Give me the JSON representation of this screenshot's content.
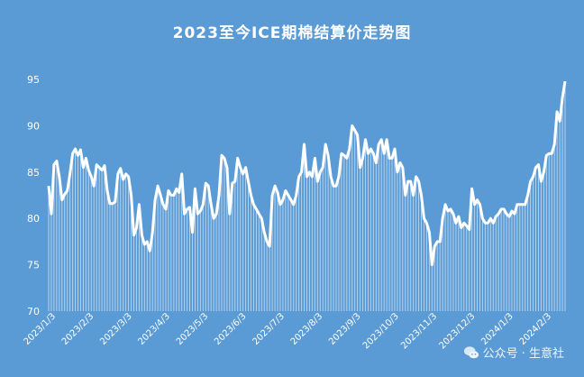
{
  "chart_data": {
    "type": "line",
    "title": "2023至今ICE期棉结算价走势图",
    "xlabel": "",
    "ylabel": "",
    "ylim": [
      70,
      95
    ],
    "yticks": [
      70,
      75,
      80,
      85,
      90,
      95
    ],
    "grid": false,
    "legend": "none",
    "fill_below": true,
    "xtick_labels": [
      "2023/1/3",
      "2023/2/3",
      "2023/3/3",
      "2023/4/3",
      "2023/5/3",
      "2023/6/3",
      "2023/7/3",
      "2023/8/3",
      "2023/9/3",
      "2023/10/3",
      "2023/11/3",
      "2023/12/3",
      "2024/1/3",
      "2024/2/3"
    ],
    "series": [
      {
        "values": [
          83.5,
          80.5,
          85.8,
          86.2,
          84.5,
          82.0,
          82.6,
          83.0,
          84.8,
          87.0,
          87.5,
          86.8,
          87.4,
          85.5,
          86.5,
          85.2,
          84.5,
          83.5,
          85.8,
          85.5,
          85.2,
          85.7,
          83.0,
          81.6,
          81.6,
          81.8,
          84.8,
          85.4,
          84.2,
          84.8,
          84.5,
          82.5,
          78.2,
          79.0,
          81.5,
          78.2,
          77.2,
          77.5,
          76.5,
          78.5,
          82.0,
          83.5,
          82.5,
          81.5,
          81.0,
          83.0,
          82.5,
          82.5,
          83.2,
          82.8,
          84.8,
          80.5,
          81.0,
          81.2,
          78.5,
          83.2,
          80.5,
          80.8,
          81.5,
          83.8,
          83.5,
          81.5,
          80.0,
          80.5,
          82.5,
          86.8,
          86.5,
          85.5,
          80.5,
          83.8,
          84.0,
          86.5,
          85.5,
          84.8,
          85.5,
          84.0,
          82.5,
          81.5,
          81.0,
          80.5,
          80.0,
          78.5,
          77.5,
          77.0,
          82.5,
          83.5,
          82.8,
          81.5,
          82.0,
          83.0,
          82.5,
          82.0,
          81.5,
          82.5,
          84.5,
          85.0,
          88.0,
          84.5,
          85.0,
          84.5,
          86.5,
          84.0,
          85.0,
          85.5,
          88.0,
          86.8,
          84.5,
          83.5,
          83.5,
          84.5,
          87.0,
          86.8,
          86.5,
          87.5,
          90.0,
          89.5,
          89.0,
          85.5,
          86.5,
          88.5,
          87.0,
          87.5,
          87.0,
          86.0,
          88.0,
          88.5,
          87.0,
          88.5,
          86.5,
          86.5,
          87.5,
          85.0,
          86.0,
          85.5,
          82.5,
          84.0,
          84.0,
          82.5,
          84.5,
          84.0,
          82.5,
          80.0,
          79.5,
          78.5,
          75.0,
          77.0,
          77.5,
          77.5,
          80.0,
          81.5,
          80.8,
          81.0,
          80.5,
          79.5,
          80.2,
          79.0,
          79.5,
          79.2,
          78.8,
          83.2,
          81.5,
          82.0,
          81.5,
          80.0,
          79.5,
          79.5,
          80.0,
          79.5,
          80.2,
          80.5,
          81.0,
          81.0,
          80.5,
          80.2,
          80.8,
          80.5,
          81.5,
          81.5,
          81.5,
          81.5,
          82.5,
          84.0,
          84.5,
          85.5,
          85.8,
          84.0,
          85.0,
          86.8,
          87.0,
          87.0,
          88.0,
          91.5,
          90.5,
          93.0,
          94.8
        ]
      }
    ]
  },
  "watermark": {
    "text": "公众号 · 生意社"
  },
  "style": {
    "background": "#5b9bd5",
    "line": "#ffffff",
    "fill": "#ffffff"
  }
}
